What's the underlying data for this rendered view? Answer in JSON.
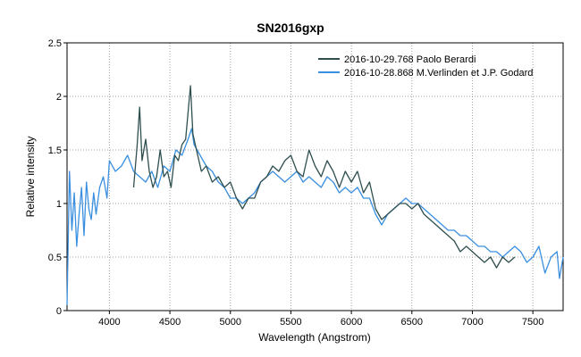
{
  "chart_data": {
    "type": "line",
    "title": "SN2016gxp",
    "xlabel": "Wavelength (Angstrom)",
    "ylabel": "Relative intensity",
    "xlim": [
      3650,
      7750
    ],
    "ylim": [
      0,
      2.5
    ],
    "xticks": [
      4000,
      4500,
      5000,
      5500,
      6000,
      6500,
      7000,
      7500
    ],
    "yticks": [
      0,
      0.5,
      1,
      1.5,
      2,
      2.5
    ],
    "xtick_labels": [
      "4000",
      "4500",
      "5000",
      "5500",
      "6000",
      "6500",
      "7000",
      "7500"
    ],
    "ytick_labels": [
      "0",
      "0.5",
      "1",
      "1.5",
      "2",
      "2.5"
    ],
    "grid": true,
    "legend_position": "top-right",
    "series": [
      {
        "name": "2016-10-29.768  Paolo Berardi",
        "color": "#2f4f4f",
        "x": [
          4200,
          4230,
          4250,
          4270,
          4300,
          4330,
          4360,
          4390,
          4420,
          4450,
          4480,
          4510,
          4540,
          4570,
          4600,
          4630,
          4650,
          4670,
          4690,
          4720,
          4760,
          4800,
          4850,
          4900,
          4950,
          5000,
          5050,
          5100,
          5150,
          5200,
          5250,
          5300,
          5350,
          5400,
          5450,
          5500,
          5550,
          5600,
          5650,
          5700,
          5750,
          5800,
          5850,
          5900,
          5950,
          6000,
          6050,
          6100,
          6150,
          6200,
          6250,
          6300,
          6350,
          6400,
          6450,
          6500,
          6550,
          6600,
          6650,
          6700,
          6750,
          6800,
          6850,
          6900,
          6950,
          7000,
          7050,
          7100,
          7150,
          7200,
          7250,
          7300,
          7350
        ],
        "y": [
          1.15,
          1.55,
          1.9,
          1.4,
          1.6,
          1.3,
          1.15,
          1.25,
          1.5,
          1.25,
          1.3,
          1.15,
          1.45,
          1.4,
          1.55,
          1.6,
          1.85,
          2.1,
          1.65,
          1.5,
          1.3,
          1.35,
          1.2,
          1.25,
          1.15,
          1.2,
          1.05,
          0.95,
          1.05,
          1.05,
          1.2,
          1.25,
          1.35,
          1.3,
          1.4,
          1.45,
          1.3,
          1.25,
          1.5,
          1.35,
          1.25,
          1.4,
          1.3,
          1.15,
          1.3,
          1.2,
          1.3,
          1.1,
          1.2,
          0.95,
          0.85,
          0.9,
          0.95,
          1.0,
          1.0,
          0.95,
          1.0,
          0.9,
          0.85,
          0.8,
          0.75,
          0.7,
          0.65,
          0.55,
          0.6,
          0.55,
          0.5,
          0.45,
          0.5,
          0.4,
          0.5,
          0.45,
          0.5
        ]
      },
      {
        "name": "2016-10-28.868  M.Verlinden et J.P. Godard",
        "color": "#3a8fe0",
        "x": [
          3650,
          3670,
          3690,
          3710,
          3730,
          3750,
          3770,
          3790,
          3810,
          3830,
          3850,
          3870,
          3890,
          3920,
          3950,
          3980,
          4000,
          4050,
          4100,
          4150,
          4200,
          4250,
          4300,
          4350,
          4400,
          4450,
          4500,
          4550,
          4600,
          4650,
          4680,
          4700,
          4750,
          4800,
          4850,
          4900,
          4950,
          5000,
          5050,
          5100,
          5150,
          5200,
          5250,
          5300,
          5350,
          5400,
          5450,
          5500,
          5550,
          5600,
          5650,
          5700,
          5750,
          5800,
          5850,
          5900,
          5950,
          6000,
          6050,
          6100,
          6150,
          6200,
          6250,
          6300,
          6350,
          6400,
          6450,
          6500,
          6550,
          6600,
          6650,
          6700,
          6750,
          6800,
          6850,
          6900,
          6950,
          7000,
          7050,
          7100,
          7150,
          7200,
          7250,
          7300,
          7350,
          7400,
          7450,
          7500,
          7550,
          7600,
          7650,
          7700,
          7720,
          7750
        ],
        "y": [
          0.05,
          1.3,
          0.75,
          1.1,
          0.6,
          0.9,
          1.15,
          0.7,
          1.2,
          0.95,
          0.85,
          1.1,
          0.9,
          1.15,
          1.25,
          1.05,
          1.4,
          1.3,
          1.35,
          1.45,
          1.3,
          1.25,
          1.2,
          1.3,
          1.15,
          1.35,
          1.3,
          1.5,
          1.45,
          1.6,
          1.7,
          1.55,
          1.45,
          1.35,
          1.3,
          1.2,
          1.15,
          1.05,
          1.05,
          1.0,
          1.05,
          1.1,
          1.2,
          1.25,
          1.3,
          1.25,
          1.2,
          1.25,
          1.3,
          1.2,
          1.25,
          1.2,
          1.15,
          1.25,
          1.2,
          1.1,
          1.15,
          1.1,
          1.15,
          1.05,
          1.05,
          0.9,
          0.8,
          0.9,
          0.95,
          1.0,
          1.05,
          1.0,
          1.0,
          0.95,
          0.9,
          0.85,
          0.8,
          0.75,
          0.75,
          0.7,
          0.7,
          0.65,
          0.6,
          0.6,
          0.55,
          0.55,
          0.5,
          0.55,
          0.6,
          0.55,
          0.45,
          0.5,
          0.6,
          0.35,
          0.5,
          0.55,
          0.3,
          0.5
        ]
      }
    ]
  }
}
